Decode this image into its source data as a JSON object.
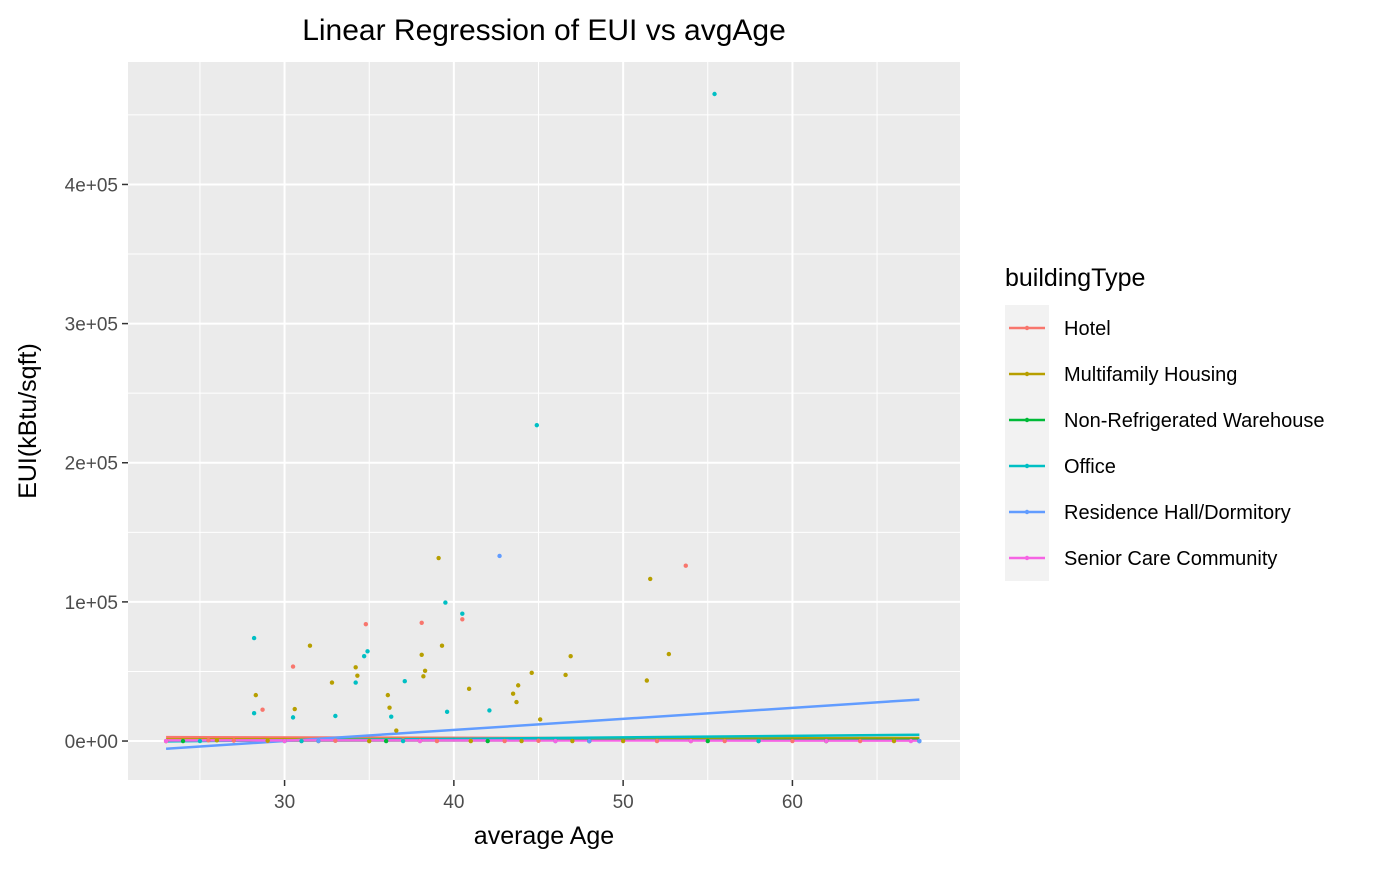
{
  "chart_data": {
    "type": "scatter",
    "title": "Linear Regression of EUI vs avgAge",
    "xlabel": "average Age",
    "ylabel": "EUI(kBtu/sqft)",
    "xlim": [
      20.75,
      69.9
    ],
    "ylim": [
      -28000,
      488000
    ],
    "x_ticks": [
      30,
      40,
      50,
      60
    ],
    "x_tick_labels": [
      "30",
      "40",
      "50",
      "60"
    ],
    "y_ticks": [
      0,
      100000,
      200000,
      300000,
      400000
    ],
    "y_tick_labels": [
      "0e+00",
      "1e+05",
      "2e+05",
      "3e+05",
      "4e+05"
    ],
    "grid": true,
    "legend_title": "buildingType",
    "legend_position": "right",
    "series": [
      {
        "name": "Hotel",
        "color": "#F8766D",
        "points": [
          [
            28.7,
            22500
          ],
          [
            30.5,
            53500
          ],
          [
            34.8,
            84000
          ],
          [
            38.1,
            85000
          ],
          [
            40.5,
            87500
          ],
          [
            53.7,
            126000
          ],
          [
            23,
            0
          ],
          [
            25.5,
            500
          ],
          [
            27,
            300
          ],
          [
            29,
            100
          ],
          [
            31,
            0
          ],
          [
            33,
            200
          ],
          [
            35,
            0
          ],
          [
            37,
            400
          ],
          [
            39,
            0
          ],
          [
            41,
            100
          ],
          [
            43,
            0
          ],
          [
            45,
            200
          ],
          [
            48,
            0
          ],
          [
            52,
            0
          ],
          [
            56,
            0
          ],
          [
            60,
            0
          ],
          [
            64,
            0
          ],
          [
            67.5,
            0
          ]
        ],
        "fit": [
          [
            23,
            2800
          ],
          [
            67.5,
            1700
          ]
        ]
      },
      {
        "name": "Multifamily Housing",
        "color": "#B79F00",
        "points": [
          [
            28.3,
            33000
          ],
          [
            30.6,
            23000
          ],
          [
            31.5,
            68500
          ],
          [
            32.8,
            42000
          ],
          [
            34.2,
            53000
          ],
          [
            34.3,
            47000
          ],
          [
            36.1,
            33000
          ],
          [
            36.2,
            24000
          ],
          [
            36.6,
            7500
          ],
          [
            38.1,
            62000
          ],
          [
            38.2,
            46500
          ],
          [
            38.3,
            50500
          ],
          [
            39.1,
            131500
          ],
          [
            39.3,
            68500
          ],
          [
            40.9,
            37500
          ],
          [
            43.5,
            34000
          ],
          [
            43.7,
            28000
          ],
          [
            43.8,
            40000
          ],
          [
            44.6,
            49000
          ],
          [
            45.1,
            15500
          ],
          [
            46.6,
            47500
          ],
          [
            46.9,
            61000
          ],
          [
            51.4,
            43500
          ],
          [
            51.6,
            116500
          ],
          [
            52.7,
            62500
          ],
          [
            23,
            0
          ],
          [
            26,
            500
          ],
          [
            29,
            300
          ],
          [
            32,
            0
          ],
          [
            35,
            0
          ],
          [
            38,
            100
          ],
          [
            41,
            0
          ],
          [
            44,
            0
          ],
          [
            47,
            0
          ],
          [
            50,
            0
          ],
          [
            54,
            0
          ],
          [
            58,
            0
          ],
          [
            62,
            0
          ],
          [
            66,
            0
          ]
        ],
        "fit": [
          [
            23,
            1200
          ],
          [
            67.5,
            2200
          ]
        ]
      },
      {
        "name": "Non-Refrigerated Warehouse",
        "color": "#00BA38",
        "points": [
          [
            24,
            0
          ],
          [
            30,
            0
          ],
          [
            36,
            0
          ],
          [
            42,
            0
          ],
          [
            48,
            0
          ],
          [
            55,
            0
          ],
          [
            62,
            0
          ]
        ],
        "fit": [
          [
            23,
            200
          ],
          [
            67.5,
            900
          ]
        ]
      },
      {
        "name": "Office",
        "color": "#00BFC4",
        "points": [
          [
            28.2,
            74000
          ],
          [
            28.2,
            20000
          ],
          [
            30.5,
            17000
          ],
          [
            33.0,
            18000
          ],
          [
            34.2,
            42000
          ],
          [
            34.7,
            61000
          ],
          [
            34.9,
            64500
          ],
          [
            36.3,
            17500
          ],
          [
            37.1,
            43000
          ],
          [
            39.5,
            99500
          ],
          [
            39.6,
            21000
          ],
          [
            40.5,
            91500
          ],
          [
            42.1,
            22000
          ],
          [
            44.9,
            227000
          ],
          [
            55.4,
            465000
          ],
          [
            67.5,
            0
          ],
          [
            25,
            0
          ],
          [
            31,
            0
          ],
          [
            37,
            0
          ],
          [
            46,
            0
          ],
          [
            58,
            0
          ]
        ],
        "fit": [
          [
            23,
            -200
          ],
          [
            67.5,
            4500
          ]
        ]
      },
      {
        "name": "Residence Hall/Dormitory",
        "color": "#619CFF",
        "points": [
          [
            42.7,
            133000
          ],
          [
            67.5,
            0
          ],
          [
            32,
            0
          ],
          [
            48,
            0
          ]
        ],
        "fit": [
          [
            23,
            -5500
          ],
          [
            67.5,
            29800
          ]
        ]
      },
      {
        "name": "Senior Care Community",
        "color": "#F564E3",
        "points": [
          [
            23,
            0
          ],
          [
            30,
            0
          ],
          [
            38,
            0
          ],
          [
            46,
            0
          ],
          [
            54,
            0
          ],
          [
            62,
            0
          ],
          [
            67,
            0
          ]
        ],
        "fit": [
          [
            23,
            500
          ],
          [
            67.5,
            300
          ]
        ]
      }
    ]
  }
}
